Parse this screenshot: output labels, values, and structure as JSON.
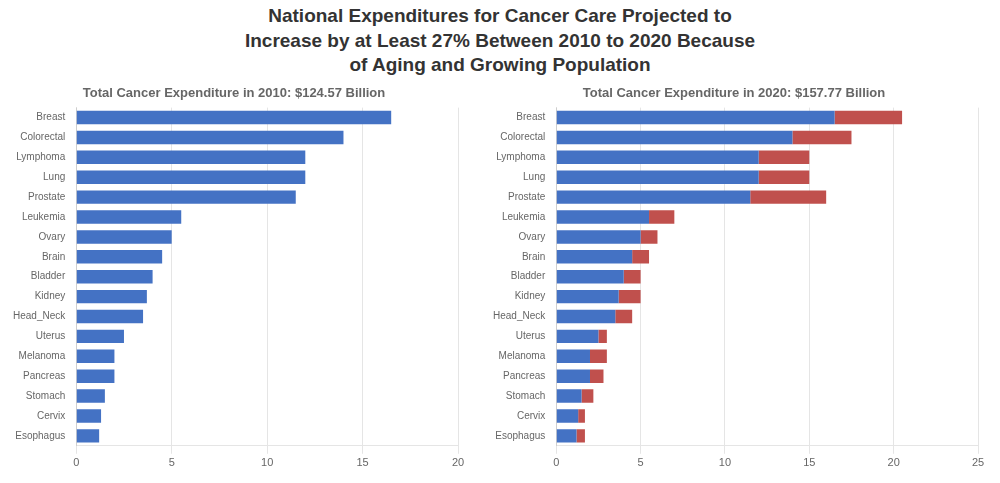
{
  "title": [
    "National Expenditures for Cancer Care Projected to",
    "Increase by at Least 27% Between 2010 to 2020 Because",
    "of Aging and Growing Population"
  ],
  "chart_data": [
    {
      "type": "bar",
      "orientation": "horizontal",
      "title": "Total Cancer Expenditure in 2010: $124.57 Billion",
      "categories": [
        "Breast",
        "Colorectal",
        "Lymphoma",
        "Lung",
        "Prostate",
        "Leukemia",
        "Ovary",
        "Brain",
        "Bladder",
        "Kidney",
        "Head_Neck",
        "Uterus",
        "Melanoma",
        "Pancreas",
        "Stomach",
        "Cervix",
        "Esophagus"
      ],
      "values": [
        16.5,
        14.0,
        12.0,
        12.0,
        11.5,
        5.5,
        5.0,
        4.5,
        4.0,
        3.7,
        3.5,
        2.5,
        2.0,
        2.0,
        1.5,
        1.3,
        1.2
      ],
      "color": "#4472C4",
      "xlim": [
        0,
        20
      ],
      "xticks": [
        0,
        5,
        10,
        15,
        20
      ],
      "grid": true
    },
    {
      "type": "bar",
      "orientation": "horizontal",
      "stacked": true,
      "title": "Total Cancer Expenditure in 2020: $157.77 Billion",
      "categories": [
        "Breast",
        "Colorectal",
        "Lymphoma",
        "Lung",
        "Prostate",
        "Leukemia",
        "Ovary",
        "Brain",
        "Bladder",
        "Kidney",
        "Head_Neck",
        "Uterus",
        "Melanoma",
        "Pancreas",
        "Stomach",
        "Cervix",
        "Esophagus"
      ],
      "series": [
        {
          "color": "#4472C4",
          "values": [
            16.5,
            14.0,
            12.0,
            12.0,
            11.5,
            5.5,
            5.0,
            4.5,
            4.0,
            3.7,
            3.5,
            2.5,
            2.0,
            2.0,
            1.5,
            1.3,
            1.2
          ]
        },
        {
          "color": "#C0504D",
          "values": [
            4.0,
            3.5,
            3.0,
            3.0,
            4.5,
            1.5,
            1.0,
            1.0,
            1.0,
            1.3,
            1.0,
            0.5,
            1.0,
            0.8,
            0.7,
            0.4,
            0.5
          ]
        }
      ],
      "xlim": [
        0,
        25
      ],
      "xticks": [
        0,
        5,
        10,
        15,
        20,
        25
      ],
      "grid": true
    }
  ]
}
